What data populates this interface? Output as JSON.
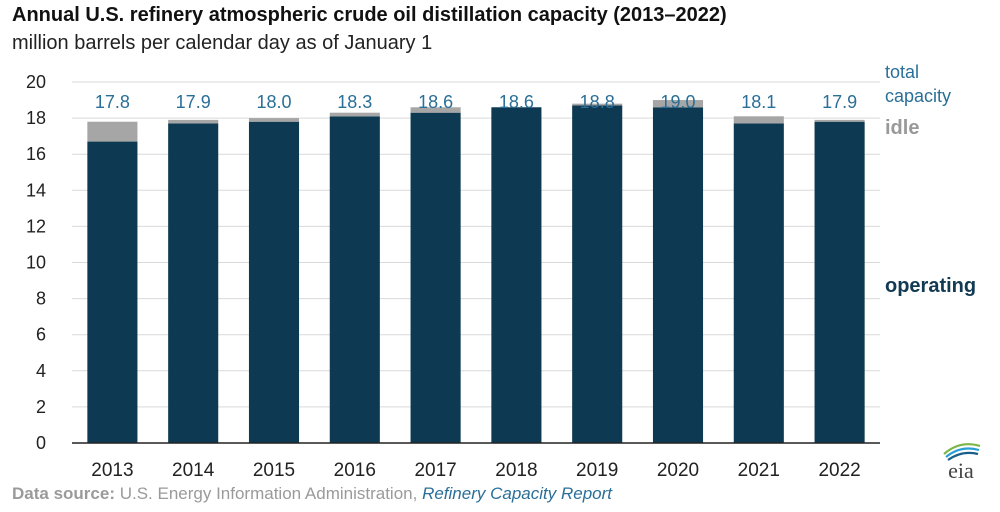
{
  "title": "Annual U.S. refinery atmospheric crude oil distillation capacity (2013–2022)",
  "subtitle": "million barrels per calendar day as of January 1",
  "source": {
    "label": "Data source:",
    "text": " U.S. Energy Information Administration, ",
    "report": "Refinery Capacity Report"
  },
  "legend": {
    "total_line1": "total",
    "total_line2": "capacity",
    "idle": "idle",
    "operating": "operating"
  },
  "logo_text": "eia",
  "colors": {
    "operating": "#0d3a52",
    "idle": "#a6a6a6",
    "total_label": "#2a6f97",
    "axis": "#222222",
    "grid": "#d9d9d9"
  },
  "chart_data": {
    "type": "bar",
    "stacked": true,
    "categories": [
      "2013",
      "2014",
      "2015",
      "2016",
      "2017",
      "2018",
      "2019",
      "2020",
      "2021",
      "2022"
    ],
    "series": [
      {
        "name": "operating",
        "values": [
          16.7,
          17.7,
          17.8,
          18.1,
          18.3,
          18.6,
          18.7,
          18.6,
          17.7,
          17.8
        ]
      },
      {
        "name": "idle",
        "values": [
          1.1,
          0.2,
          0.2,
          0.2,
          0.3,
          0.0,
          0.1,
          0.4,
          0.4,
          0.1
        ]
      }
    ],
    "total_labels": [
      "17.8",
      "17.9",
      "18.0",
      "18.3",
      "18.6",
      "18.6",
      "18.8",
      "19.0",
      "18.1",
      "17.9"
    ],
    "y_ticks": [
      "0",
      "2",
      "4",
      "6",
      "8",
      "10",
      "12",
      "14",
      "16",
      "18",
      "20"
    ],
    "ylim": [
      0,
      20
    ],
    "grid": true
  }
}
